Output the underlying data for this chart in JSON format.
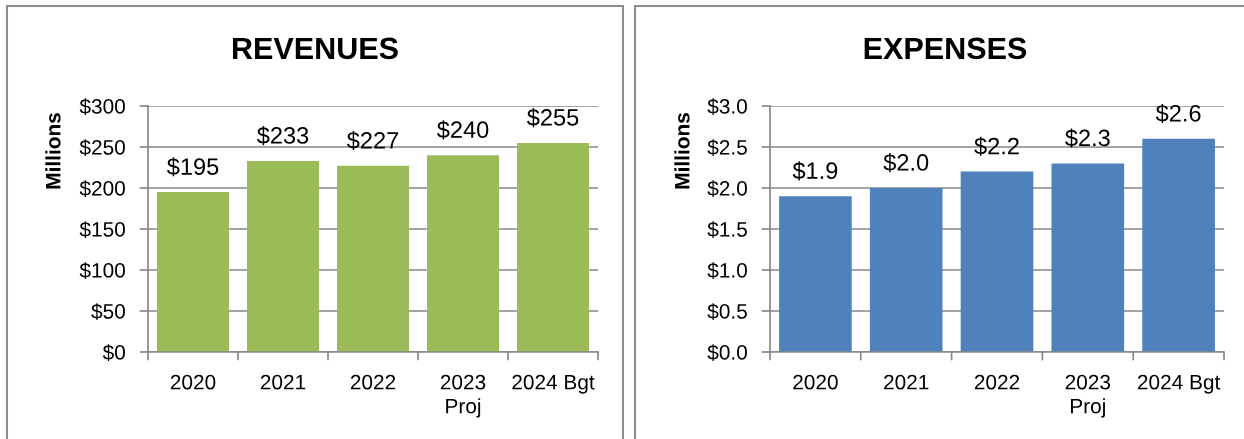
{
  "chart_data": [
    {
      "type": "bar",
      "title": "REVENUES",
      "ylabel": "Millions",
      "categories": [
        "2020",
        "2021",
        "2022",
        "2023\nProj",
        "2024 Bgt"
      ],
      "values": [
        195,
        233,
        227,
        240,
        255
      ],
      "value_labels": [
        "$195",
        "$233",
        "$227",
        "$240",
        "$255"
      ],
      "color": "#9bbb59",
      "ylim": [
        0,
        300
      ],
      "yticks": [
        {
          "value": 0,
          "label": "$0"
        },
        {
          "value": 50,
          "label": "$50"
        },
        {
          "value": 100,
          "label": "$100"
        },
        {
          "value": 150,
          "label": "$150"
        },
        {
          "value": 200,
          "label": "$200"
        },
        {
          "value": 250,
          "label": "$250"
        },
        {
          "value": 300,
          "label": "$300"
        }
      ],
      "grid": "y"
    },
    {
      "type": "bar",
      "title": "EXPENSES",
      "ylabel": "Millions",
      "categories": [
        "2020",
        "2021",
        "2022",
        "2023\nProj",
        "2024 Bgt"
      ],
      "values": [
        1.9,
        2.0,
        2.2,
        2.3,
        2.6
      ],
      "value_labels": [
        "$1.9",
        "$2.0",
        "$2.2",
        "$2.3",
        "$2.6"
      ],
      "color": "#4f81bd",
      "ylim": [
        0,
        3.0
      ],
      "yticks": [
        {
          "value": 0,
          "label": "$0.0"
        },
        {
          "value": 0.5,
          "label": "$0.5"
        },
        {
          "value": 1.0,
          "label": "$1.0"
        },
        {
          "value": 1.5,
          "label": "$1.5"
        },
        {
          "value": 2.0,
          "label": "$2.0"
        },
        {
          "value": 2.5,
          "label": "$2.5"
        },
        {
          "value": 3.0,
          "label": "$3.0"
        }
      ],
      "grid": "y"
    }
  ]
}
